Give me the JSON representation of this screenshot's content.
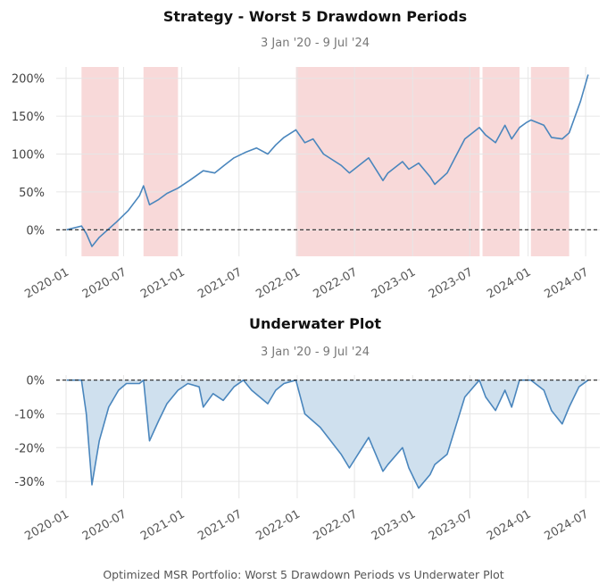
{
  "caption": "Optimized MSR Portfolio: Worst 5 Drawdown Periods vs Underwater Plot",
  "chart_data": [
    {
      "type": "line",
      "title": "Strategy - Worst 5 Drawdown Periods",
      "subtitle": "3 Jan '20 -  9 Jul '24",
      "y_unit": "percent",
      "ylim": [
        -35,
        215
      ],
      "yticks": [
        0,
        50,
        100,
        150,
        200
      ],
      "ytick_labels": [
        "0%",
        "50%",
        "100%",
        "150%",
        "200%"
      ],
      "xlim": [
        "2019-12-01",
        "2024-08-15"
      ],
      "xticks": [
        "2020-01",
        "2020-07",
        "2021-01",
        "2021-07",
        "2022-01",
        "2022-07",
        "2023-01",
        "2023-07",
        "2024-01",
        "2024-07"
      ],
      "grid": true,
      "baseline": 0,
      "line_color": "#4a86bd",
      "shade_color": "#f8d9d9",
      "drawdown_periods": [
        {
          "start": "2020-02-19",
          "end": "2020-06-15"
        },
        {
          "start": "2020-09-02",
          "end": "2020-12-20"
        },
        {
          "start": "2021-12-28",
          "end": "2023-08-01"
        },
        {
          "start": "2023-08-10",
          "end": "2023-12-05"
        },
        {
          "start": "2024-01-10",
          "end": "2024-05-10"
        }
      ],
      "series": [
        {
          "x": [
            "2020-01-03",
            "2020-02-19",
            "2020-03-05",
            "2020-03-23",
            "2020-04-15",
            "2020-06-08",
            "2020-07-15",
            "2020-08-20",
            "2020-09-02",
            "2020-09-21",
            "2020-10-20",
            "2020-11-15",
            "2020-12-20",
            "2021-01-25",
            "2021-03-10",
            "2021-04-15",
            "2021-05-15",
            "2021-06-15",
            "2021-07-20",
            "2021-08-25",
            "2021-09-30",
            "2021-10-25",
            "2021-11-20",
            "2021-12-28",
            "2022-01-25",
            "2022-02-20",
            "2022-03-25",
            "2022-05-20",
            "2022-06-15",
            "2022-08-15",
            "2022-09-29",
            "2022-10-15",
            "2022-11-30",
            "2022-12-20",
            "2023-01-20",
            "2023-02-25",
            "2023-03-12",
            "2023-04-20",
            "2023-06-15",
            "2023-07-31",
            "2023-08-20",
            "2023-09-20",
            "2023-10-20",
            "2023-11-10",
            "2023-12-05",
            "2023-12-28",
            "2024-01-10",
            "2024-02-20",
            "2024-03-15",
            "2024-04-18",
            "2024-05-10",
            "2024-06-15",
            "2024-07-09"
          ],
          "y": [
            0,
            5,
            -5,
            -22,
            -10,
            10,
            25,
            45,
            58,
            33,
            40,
            48,
            55,
            65,
            78,
            75,
            85,
            95,
            102,
            108,
            100,
            112,
            122,
            132,
            115,
            120,
            100,
            85,
            75,
            95,
            65,
            75,
            90,
            80,
            88,
            70,
            60,
            75,
            120,
            135,
            125,
            115,
            138,
            120,
            135,
            142,
            145,
            138,
            122,
            120,
            128,
            170,
            205
          ]
        }
      ]
    },
    {
      "type": "area",
      "title": "Underwater Plot",
      "subtitle": "3 Jan '20 -  9 Jul '24",
      "y_unit": "percent",
      "ylim": [
        -35,
        1.5
      ],
      "yticks": [
        0,
        -10,
        -20,
        -30
      ],
      "ytick_labels": [
        "0%",
        "-10%",
        "-20%",
        "-30%"
      ],
      "xlim": [
        "2019-12-01",
        "2024-08-15"
      ],
      "xticks": [
        "2020-01",
        "2020-07",
        "2021-01",
        "2021-07",
        "2022-01",
        "2022-07",
        "2023-01",
        "2023-07",
        "2024-01",
        "2024-07"
      ],
      "grid": true,
      "line_color": "#4a86bd",
      "fill_color": "#cfe0ee",
      "series": [
        {
          "x": [
            "2020-01-03",
            "2020-02-19",
            "2020-03-05",
            "2020-03-23",
            "2020-04-15",
            "2020-05-15",
            "2020-06-15",
            "2020-07-10",
            "2020-08-20",
            "2020-09-02",
            "2020-09-21",
            "2020-10-20",
            "2020-11-15",
            "2020-12-20",
            "2021-01-20",
            "2021-02-25",
            "2021-03-10",
            "2021-04-10",
            "2021-05-12",
            "2021-06-15",
            "2021-07-15",
            "2021-08-10",
            "2021-09-30",
            "2021-10-25",
            "2021-11-20",
            "2021-12-28",
            "2022-01-25",
            "2022-03-15",
            "2022-05-20",
            "2022-06-15",
            "2022-08-15",
            "2022-09-29",
            "2022-10-15",
            "2022-11-30",
            "2022-12-20",
            "2023-01-20",
            "2023-02-25",
            "2023-03-12",
            "2023-04-20",
            "2023-06-15",
            "2023-07-31",
            "2023-08-20",
            "2023-09-20",
            "2023-10-20",
            "2023-11-10",
            "2023-12-05",
            "2024-01-10",
            "2024-02-20",
            "2024-03-15",
            "2024-04-18",
            "2024-05-10",
            "2024-06-10",
            "2024-07-09"
          ],
          "y": [
            0,
            0,
            -10,
            -31,
            -18,
            -8,
            -3,
            -1,
            -1,
            0,
            -18,
            -12,
            -7,
            -3,
            -1,
            -2,
            -8,
            -4,
            -6,
            -2,
            0,
            -3,
            -7,
            -3,
            -1,
            0,
            -10,
            -14,
            -22,
            -26,
            -17,
            -27,
            -25,
            -20,
            -26,
            -32,
            -28,
            -25,
            -22,
            -5,
            0,
            -5,
            -9,
            -3,
            -8,
            0,
            0,
            -3,
            -9,
            -13,
            -8,
            -2,
            0
          ]
        }
      ]
    }
  ]
}
